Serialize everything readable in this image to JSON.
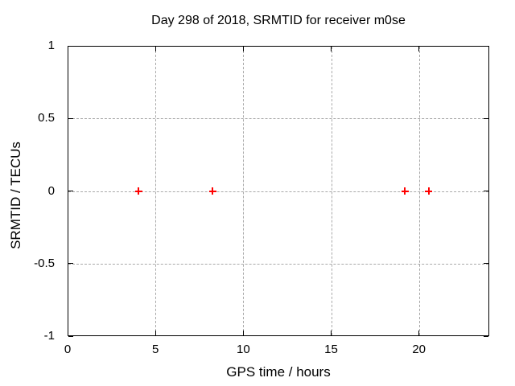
{
  "chart_data": {
    "type": "scatter",
    "title": "Day 298 of 2018, SRMTID for receiver m0se",
    "xlabel": "GPS time / hours",
    "ylabel": "SRMTID / TECUs",
    "xlim": [
      0,
      24
    ],
    "ylim": [
      -1,
      1
    ],
    "xticks": [
      {
        "value": 0,
        "label": "0"
      },
      {
        "value": 5,
        "label": "5"
      },
      {
        "value": 10,
        "label": "10"
      },
      {
        "value": 15,
        "label": "15"
      },
      {
        "value": 20,
        "label": "20"
      }
    ],
    "yticks": [
      {
        "value": 1,
        "label": "1"
      },
      {
        "value": 0.5,
        "label": "0.5"
      },
      {
        "value": 0,
        "label": "0"
      },
      {
        "value": -0.5,
        "label": "-0.5"
      },
      {
        "value": -1,
        "label": "-1"
      }
    ],
    "grid": true,
    "legend_position": "none",
    "series": [
      {
        "name": "SRMTID",
        "marker": "plus",
        "color": "#ff0000",
        "points": [
          [
            4.05,
            0
          ],
          [
            8.25,
            0
          ],
          [
            19.2,
            0
          ],
          [
            20.55,
            0
          ]
        ]
      }
    ]
  },
  "colors": {
    "background": "#ffffff",
    "axis": "#000000",
    "grid_line": "#a9a9a9",
    "text": "#000000",
    "marker": "#ff0000"
  }
}
